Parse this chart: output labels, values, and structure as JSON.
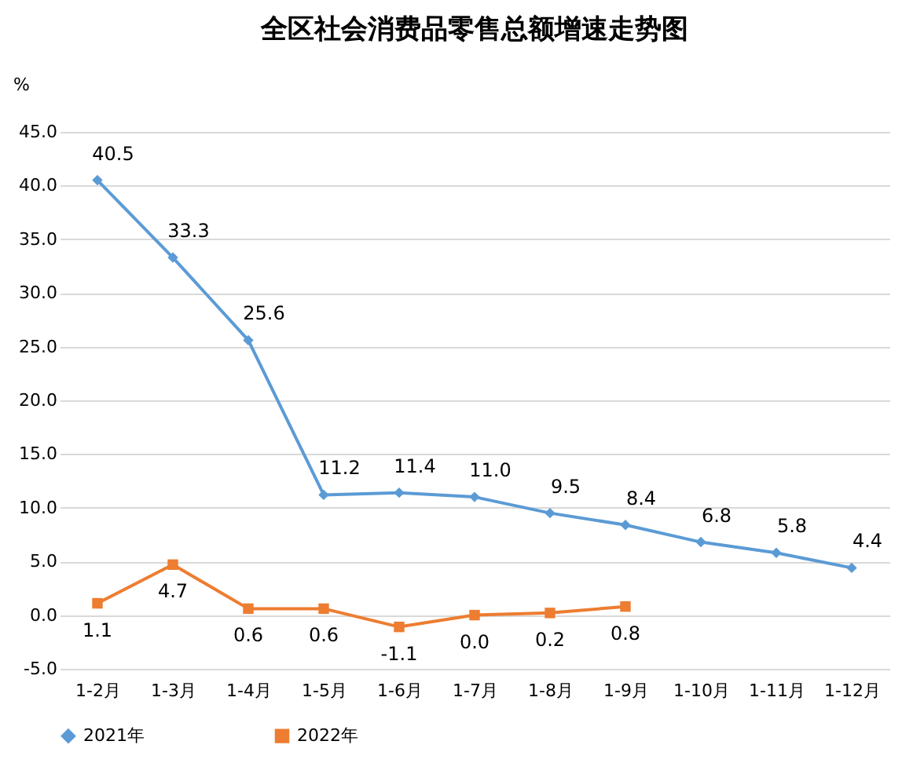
{
  "chart_data": {
    "type": "line",
    "title": "全区社会消费品零售总额增速走势图",
    "ylabel": "%",
    "categories": [
      "1-2月",
      "1-3月",
      "1-4月",
      "1-5月",
      "1-6月",
      "1-7月",
      "1-8月",
      "1-9月",
      "1-10月",
      "1-11月",
      "1-12月"
    ],
    "series": [
      {
        "name": "2021年",
        "color": "#5b9bd5",
        "marker": "diamond",
        "values": [
          40.5,
          33.3,
          25.6,
          11.2,
          11.4,
          11.0,
          9.5,
          8.4,
          6.8,
          5.8,
          4.4
        ],
        "value_labels": [
          "40.5",
          "33.3",
          "25.6",
          "11.2",
          "11.4",
          "11.0",
          "9.5",
          "8.4",
          "6.8",
          "5.8",
          "4.4"
        ]
      },
      {
        "name": "2022年",
        "color": "#ed7d31",
        "marker": "square",
        "values": [
          1.1,
          4.7,
          0.6,
          0.6,
          -1.1,
          0.0,
          0.2,
          0.8,
          null,
          null,
          null
        ],
        "value_labels": [
          "1.1",
          "4.7",
          "0.6",
          "0.6",
          "-1.1",
          "0.0",
          "0.2",
          "0.8",
          null,
          null,
          null
        ]
      }
    ],
    "ylim": [
      -5,
      45
    ],
    "yticks": [
      {
        "value": -5,
        "label": "-5.0"
      },
      {
        "value": 0,
        "label": "0.0"
      },
      {
        "value": 5,
        "label": "5.0"
      },
      {
        "value": 10,
        "label": "10.0"
      },
      {
        "value": 15,
        "label": "15.0"
      },
      {
        "value": 20,
        "label": "20.0"
      },
      {
        "value": 25,
        "label": "25.0"
      },
      {
        "value": 30,
        "label": "30.0"
      },
      {
        "value": 35,
        "label": "35.0"
      },
      {
        "value": 40,
        "label": "40.0"
      },
      {
        "value": 45,
        "label": "45.0"
      }
    ],
    "grid": "y",
    "legend": "bottom",
    "line_style": "solid"
  }
}
